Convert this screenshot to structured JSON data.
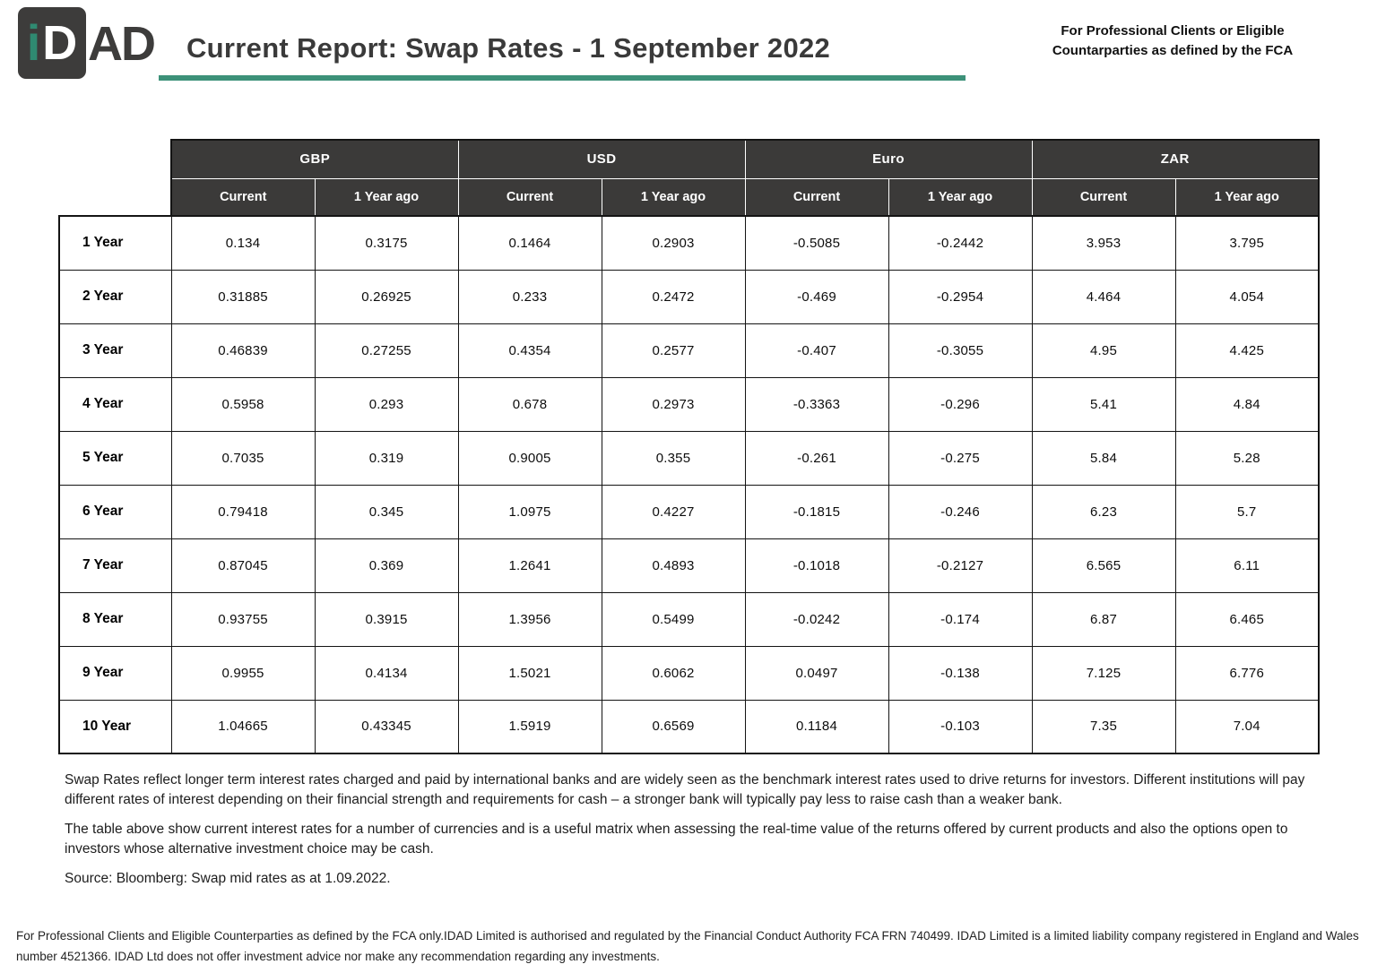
{
  "logo": {
    "i": "i",
    "d": "D",
    "suffix": "AD"
  },
  "header": {
    "title": "Current Report: Swap Rates - 1 September 2022",
    "fca_note_line1": "For Professional Clients or Eligible",
    "fca_note_line2": "Countarparties as defined by the FCA"
  },
  "table": {
    "currency_groups": [
      "GBP",
      "USD",
      "Euro",
      "ZAR"
    ],
    "sub_headers": [
      "Current",
      "1 Year ago"
    ],
    "rows": [
      {
        "label": "1 Year",
        "values": [
          "0.134",
          "0.3175",
          "0.1464",
          "0.2903",
          "-0.5085",
          "-0.2442",
          "3.953",
          "3.795"
        ]
      },
      {
        "label": "2 Year",
        "values": [
          "0.31885",
          "0.26925",
          "0.233",
          "0.2472",
          "-0.469",
          "-0.2954",
          "4.464",
          "4.054"
        ]
      },
      {
        "label": "3 Year",
        "values": [
          "0.46839",
          "0.27255",
          "0.4354",
          "0.2577",
          "-0.407",
          "-0.3055",
          "4.95",
          "4.425"
        ]
      },
      {
        "label": "4 Year",
        "values": [
          "0.5958",
          "0.293",
          "0.678",
          "0.2973",
          "-0.3363",
          "-0.296",
          "5.41",
          "4.84"
        ]
      },
      {
        "label": "5 Year",
        "values": [
          "0.7035",
          "0.319",
          "0.9005",
          "0.355",
          "-0.261",
          "-0.275",
          "5.84",
          "5.28"
        ]
      },
      {
        "label": "6 Year",
        "values": [
          "0.79418",
          "0.345",
          "1.0975",
          "0.4227",
          "-0.1815",
          "-0.246",
          "6.23",
          "5.7"
        ]
      },
      {
        "label": "7 Year",
        "values": [
          "0.87045",
          "0.369",
          "1.2641",
          "0.4893",
          "-0.1018",
          "-0.2127",
          "6.565",
          "6.11"
        ]
      },
      {
        "label": "8 Year",
        "values": [
          "0.93755",
          "0.3915",
          "1.3956",
          "0.5499",
          "-0.0242",
          "-0.174",
          "6.87",
          "6.465"
        ]
      },
      {
        "label": "9 Year",
        "values": [
          "0.9955",
          "0.4134",
          "1.5021",
          "0.6062",
          "0.0497",
          "-0.138",
          "7.125",
          "6.776"
        ]
      },
      {
        "label": "10 Year",
        "values": [
          "1.04665",
          "0.43345",
          "1.5919",
          "0.6569",
          "0.1184",
          "-0.103",
          "7.35",
          "7.04"
        ]
      }
    ]
  },
  "notes": {
    "paragraph1": "Swap Rates reflect longer term interest rates charged and paid by international banks and are widely seen as the benchmark interest rates used to drive returns for investors. Different institutions will pay different rates of interest depending on their financial strength and requirements for cash – a stronger bank will typically pay less to raise cash than a weaker bank.",
    "paragraph2": "The table above show current interest rates for a number of currencies and is a useful matrix when assessing the real-time value of the returns offered by current products and also the options open to investors whose alternative investment choice may be cash.",
    "source": "Source: Bloomberg: Swap mid rates as at 1.09.2022."
  },
  "footer": {
    "text": "For Professional Clients and Eligible Counterparties as defined by the FCA only.IDAD Limited is authorised and regulated by the Financial Conduct Authority FCA FRN 740499. IDAD Limited is a limited liability company registered in England and Wales number 4521366. IDAD Ltd does not offer investment advice nor make any recommendation regarding any investments."
  },
  "colors": {
    "accent_teal": "#3d9179",
    "logo_teal": "#2f8a71",
    "header_dark": "#3b3a39",
    "title_gray": "#3a3a3a",
    "grid_black": "#141414"
  }
}
